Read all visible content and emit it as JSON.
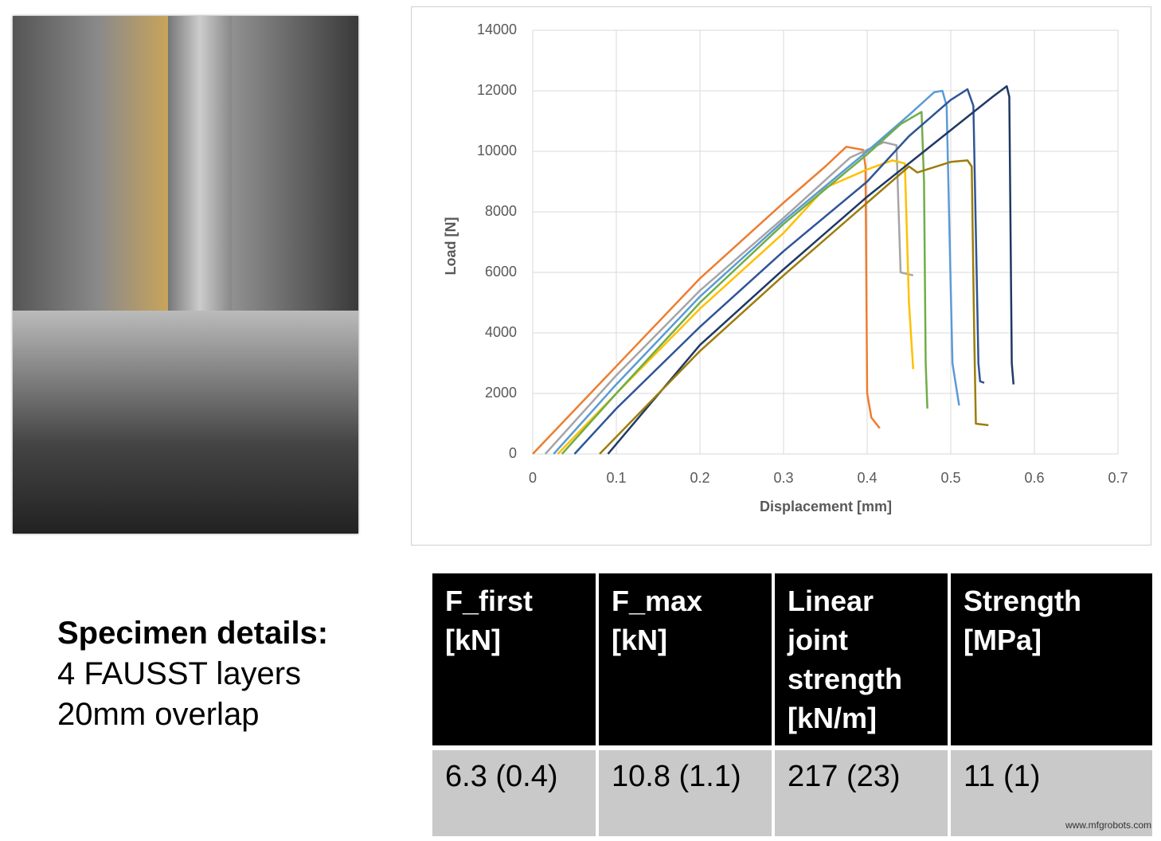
{
  "chart_data": {
    "type": "line",
    "x_label": "Displacement [mm]",
    "y_label": "Load [N]",
    "xlim": [
      0,
      0.7
    ],
    "xticks": [
      0,
      0.1,
      0.2,
      0.3,
      0.4,
      0.5,
      0.6,
      0.7
    ],
    "ylim": [
      0,
      14000
    ],
    "yticks": [
      0,
      2000,
      4000,
      6000,
      8000,
      10000,
      12000,
      14000
    ],
    "grid": true,
    "series": [
      {
        "color": "#ed7d31",
        "x": [
          0,
          0.1,
          0.2,
          0.3,
          0.35,
          0.375,
          0.395,
          0.398,
          0.4,
          0.405,
          0.415
        ],
        "values": [
          0,
          2900,
          5800,
          8300,
          9500,
          10150,
          10050,
          9500,
          2000,
          1200,
          850
        ]
      },
      {
        "color": "#a5a5a5",
        "x": [
          0.015,
          0.1,
          0.2,
          0.3,
          0.38,
          0.42,
          0.435,
          0.44,
          0.455
        ],
        "values": [
          0,
          2600,
          5400,
          7800,
          9800,
          10300,
          10200,
          6000,
          5900
        ]
      },
      {
        "color": "#ffc000",
        "x": [
          0.03,
          0.1,
          0.2,
          0.3,
          0.35,
          0.4,
          0.43,
          0.445,
          0.45,
          0.455
        ],
        "values": [
          0,
          2000,
          4800,
          7300,
          8800,
          9400,
          9700,
          9600,
          5000,
          2800
        ]
      },
      {
        "color": "#5b9bd5",
        "x": [
          0.025,
          0.1,
          0.2,
          0.3,
          0.4,
          0.45,
          0.48,
          0.49,
          0.495,
          0.502,
          0.51
        ],
        "values": [
          0,
          2300,
          5200,
          7700,
          10000,
          11200,
          11950,
          12000,
          11500,
          3000,
          1600
        ]
      },
      {
        "color": "#70ad47",
        "x": [
          0.035,
          0.1,
          0.2,
          0.3,
          0.4,
          0.44,
          0.465,
          0.468,
          0.47,
          0.472
        ],
        "values": [
          0,
          2000,
          5000,
          7600,
          9900,
          10900,
          11300,
          9000,
          3000,
          1500
        ]
      },
      {
        "color": "#2f5597",
        "x": [
          0.05,
          0.1,
          0.2,
          0.3,
          0.4,
          0.45,
          0.5,
          0.52,
          0.527,
          0.533,
          0.535,
          0.54
        ],
        "values": [
          0,
          1500,
          4200,
          6700,
          9000,
          10500,
          11700,
          12050,
          11500,
          3000,
          2400,
          2350
        ]
      },
      {
        "color": "#1f3864",
        "x": [
          0.09,
          0.2,
          0.3,
          0.4,
          0.5,
          0.55,
          0.567,
          0.57,
          0.573,
          0.575
        ],
        "values": [
          0,
          3600,
          6100,
          8500,
          10700,
          11800,
          12150,
          11800,
          3000,
          2300
        ]
      },
      {
        "color": "#9c7d0a",
        "x": [
          0.08,
          0.2,
          0.3,
          0.4,
          0.45,
          0.46,
          0.5,
          0.52,
          0.525,
          0.528,
          0.53,
          0.545
        ],
        "values": [
          0,
          3400,
          5900,
          8300,
          9500,
          9300,
          9650,
          9700,
          9500,
          4000,
          1000,
          950
        ]
      }
    ]
  },
  "specimen": {
    "title": "Specimen details:",
    "lines": [
      "4 FAUSST layers",
      "20mm overlap"
    ]
  },
  "table": {
    "header": [
      [
        "F_first",
        "[kN]"
      ],
      [
        "F_max",
        "[kN]"
      ],
      [
        "Linear",
        "joint",
        "strength",
        "[kN/m]"
      ],
      [
        "Strength",
        "[MPa]"
      ]
    ],
    "rows": [
      [
        "6.3 (0.4)",
        "10.8 (1.1)",
        "217 (23)",
        "11 (1)"
      ]
    ]
  },
  "watermark": "www.mfgrobots.com"
}
